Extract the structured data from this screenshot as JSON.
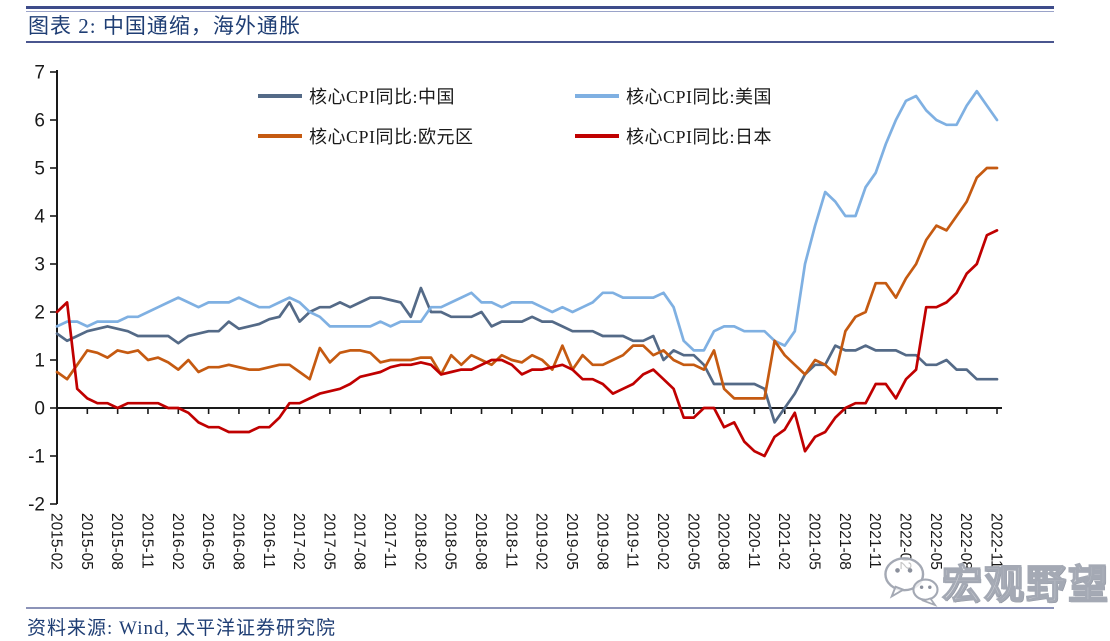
{
  "header": {
    "title": "图表 2:  中国通缩，海外通胀"
  },
  "legend": {
    "items": [
      {
        "label": "核心CPI同比:中国",
        "color": "#546A87"
      },
      {
        "label": "核心CPI同比:美国",
        "color": "#7FB0E2"
      },
      {
        "label": "核心CPI同比:欧元区",
        "color": "#C55A11"
      },
      {
        "label": "核心CPI同比:日本",
        "color": "#C00000"
      }
    ]
  },
  "footer": {
    "source": "资料来源: Wind, 太平洋证券研究院"
  },
  "watermark": {
    "text": "宏观野望",
    "icon": "wechat-icon"
  },
  "colors": {
    "title_navy": "#1F3E74",
    "rule_blue": "#3E4C8A",
    "axis_black": "#1a1a1a"
  },
  "chart_data": {
    "type": "line",
    "title": "",
    "xlabel": "",
    "ylabel": "",
    "ylim": [
      -2,
      7
    ],
    "yticks": [
      -2,
      -1,
      0,
      1,
      2,
      3,
      4,
      5,
      6,
      7
    ],
    "grid": false,
    "legend_position": "top-center",
    "x_tick_every_months": 3,
    "x": [
      "2015-02",
      "2015-03",
      "2015-04",
      "2015-05",
      "2015-06",
      "2015-07",
      "2015-08",
      "2015-09",
      "2015-10",
      "2015-11",
      "2015-12",
      "2016-01",
      "2016-02",
      "2016-03",
      "2016-04",
      "2016-05",
      "2016-06",
      "2016-07",
      "2016-08",
      "2016-09",
      "2016-10",
      "2016-11",
      "2016-12",
      "2017-01",
      "2017-02",
      "2017-03",
      "2017-04",
      "2017-05",
      "2017-06",
      "2017-07",
      "2017-08",
      "2017-09",
      "2017-10",
      "2017-11",
      "2017-12",
      "2018-01",
      "2018-02",
      "2018-03",
      "2018-04",
      "2018-05",
      "2018-06",
      "2018-07",
      "2018-08",
      "2018-09",
      "2018-10",
      "2018-11",
      "2018-12",
      "2019-01",
      "2019-02",
      "2019-03",
      "2019-04",
      "2019-05",
      "2019-06",
      "2019-07",
      "2019-08",
      "2019-09",
      "2019-10",
      "2019-11",
      "2019-12",
      "2020-01",
      "2020-02",
      "2020-03",
      "2020-04",
      "2020-05",
      "2020-06",
      "2020-07",
      "2020-08",
      "2020-09",
      "2020-10",
      "2020-11",
      "2020-12",
      "2021-01",
      "2021-02",
      "2021-03",
      "2021-04",
      "2021-05",
      "2021-06",
      "2021-07",
      "2021-08",
      "2021-09",
      "2021-10",
      "2021-11",
      "2021-12",
      "2022-01",
      "2022-02",
      "2022-03",
      "2022-04",
      "2022-05",
      "2022-06",
      "2022-07",
      "2022-08",
      "2022-09",
      "2022-10",
      "2022-11"
    ],
    "series": [
      {
        "name": "核心CPI同比:中国",
        "color": "#546A87",
        "values": [
          1.55,
          1.4,
          1.5,
          1.6,
          1.65,
          1.7,
          1.65,
          1.6,
          1.5,
          1.5,
          1.5,
          1.5,
          1.35,
          1.5,
          1.55,
          1.6,
          1.6,
          1.8,
          1.65,
          1.7,
          1.75,
          1.85,
          1.9,
          2.2,
          1.8,
          2.0,
          2.1,
          2.1,
          2.2,
          2.1,
          2.2,
          2.3,
          2.3,
          2.25,
          2.2,
          1.9,
          2.5,
          2.0,
          2.0,
          1.9,
          1.9,
          1.9,
          2.0,
          1.7,
          1.8,
          1.8,
          1.8,
          1.9,
          1.8,
          1.8,
          1.7,
          1.6,
          1.6,
          1.6,
          1.5,
          1.5,
          1.5,
          1.4,
          1.4,
          1.5,
          1.0,
          1.2,
          1.1,
          1.1,
          0.9,
          0.5,
          0.5,
          0.5,
          0.5,
          0.5,
          0.4,
          -0.3,
          0.0,
          0.3,
          0.7,
          0.9,
          0.9,
          1.3,
          1.2,
          1.2,
          1.3,
          1.2,
          1.2,
          1.2,
          1.1,
          1.1,
          0.9,
          0.9,
          1.0,
          0.8,
          0.8,
          0.6,
          0.6,
          0.6
        ]
      },
      {
        "name": "核心CPI同比:美国",
        "color": "#7FB0E2",
        "values": [
          1.7,
          1.8,
          1.8,
          1.7,
          1.8,
          1.8,
          1.8,
          1.9,
          1.9,
          2.0,
          2.1,
          2.2,
          2.3,
          2.2,
          2.1,
          2.2,
          2.2,
          2.2,
          2.3,
          2.2,
          2.1,
          2.1,
          2.2,
          2.3,
          2.2,
          2.0,
          1.9,
          1.7,
          1.7,
          1.7,
          1.7,
          1.7,
          1.8,
          1.7,
          1.8,
          1.8,
          1.8,
          2.1,
          2.1,
          2.2,
          2.3,
          2.4,
          2.2,
          2.2,
          2.1,
          2.2,
          2.2,
          2.2,
          2.1,
          2.0,
          2.1,
          2.0,
          2.1,
          2.2,
          2.4,
          2.4,
          2.3,
          2.3,
          2.3,
          2.3,
          2.4,
          2.1,
          1.4,
          1.2,
          1.2,
          1.6,
          1.7,
          1.7,
          1.6,
          1.6,
          1.6,
          1.4,
          1.3,
          1.6,
          3.0,
          3.8,
          4.5,
          4.3,
          4.0,
          4.0,
          4.6,
          4.9,
          5.5,
          6.0,
          6.4,
          6.5,
          6.2,
          6.0,
          5.9,
          5.9,
          6.3,
          6.6,
          6.3,
          6.0
        ]
      },
      {
        "name": "核心CPI同比:欧元区",
        "color": "#C55A11",
        "values": [
          0.75,
          0.6,
          0.9,
          1.2,
          1.15,
          1.05,
          1.2,
          1.15,
          1.2,
          1.0,
          1.05,
          0.95,
          0.8,
          1.0,
          0.75,
          0.85,
          0.85,
          0.9,
          0.85,
          0.8,
          0.8,
          0.85,
          0.9,
          0.9,
          0.75,
          0.6,
          1.25,
          0.95,
          1.15,
          1.2,
          1.2,
          1.15,
          0.95,
          1.0,
          1.0,
          1.0,
          1.05,
          1.05,
          0.7,
          1.1,
          0.9,
          1.1,
          1.0,
          0.9,
          1.1,
          1.0,
          0.95,
          1.1,
          1.0,
          0.8,
          1.3,
          0.8,
          1.1,
          0.9,
          0.9,
          1.0,
          1.1,
          1.3,
          1.3,
          1.1,
          1.2,
          1.0,
          0.9,
          0.9,
          0.8,
          1.2,
          0.4,
          0.2,
          0.2,
          0.2,
          0.2,
          1.4,
          1.1,
          0.9,
          0.7,
          1.0,
          0.9,
          0.7,
          1.6,
          1.9,
          2.0,
          2.6,
          2.6,
          2.3,
          2.7,
          3.0,
          3.5,
          3.8,
          3.7,
          4.0,
          4.3,
          4.8,
          5.0,
          5.0
        ]
      },
      {
        "name": "核心CPI同比:日本",
        "color": "#C00000",
        "values": [
          2.0,
          2.2,
          0.4,
          0.2,
          0.1,
          0.1,
          0.0,
          0.1,
          0.1,
          0.1,
          0.1,
          0.0,
          0.0,
          -0.1,
          -0.3,
          -0.4,
          -0.4,
          -0.5,
          -0.5,
          -0.5,
          -0.4,
          -0.4,
          -0.2,
          0.1,
          0.1,
          0.2,
          0.3,
          0.35,
          0.4,
          0.5,
          0.65,
          0.7,
          0.75,
          0.85,
          0.9,
          0.9,
          0.95,
          0.9,
          0.7,
          0.75,
          0.8,
          0.8,
          0.9,
          1.0,
          1.0,
          0.9,
          0.7,
          0.8,
          0.8,
          0.85,
          0.9,
          0.8,
          0.6,
          0.6,
          0.5,
          0.3,
          0.4,
          0.5,
          0.7,
          0.8,
          0.6,
          0.4,
          -0.2,
          -0.2,
          0.0,
          0.0,
          -0.4,
          -0.3,
          -0.7,
          -0.9,
          -1.0,
          -0.6,
          -0.45,
          -0.1,
          -0.9,
          -0.6,
          -0.5,
          -0.2,
          0.0,
          0.1,
          0.1,
          0.5,
          0.5,
          0.2,
          0.6,
          0.8,
          2.1,
          2.1,
          2.2,
          2.4,
          2.8,
          3.0,
          3.6,
          3.7
        ]
      }
    ]
  }
}
